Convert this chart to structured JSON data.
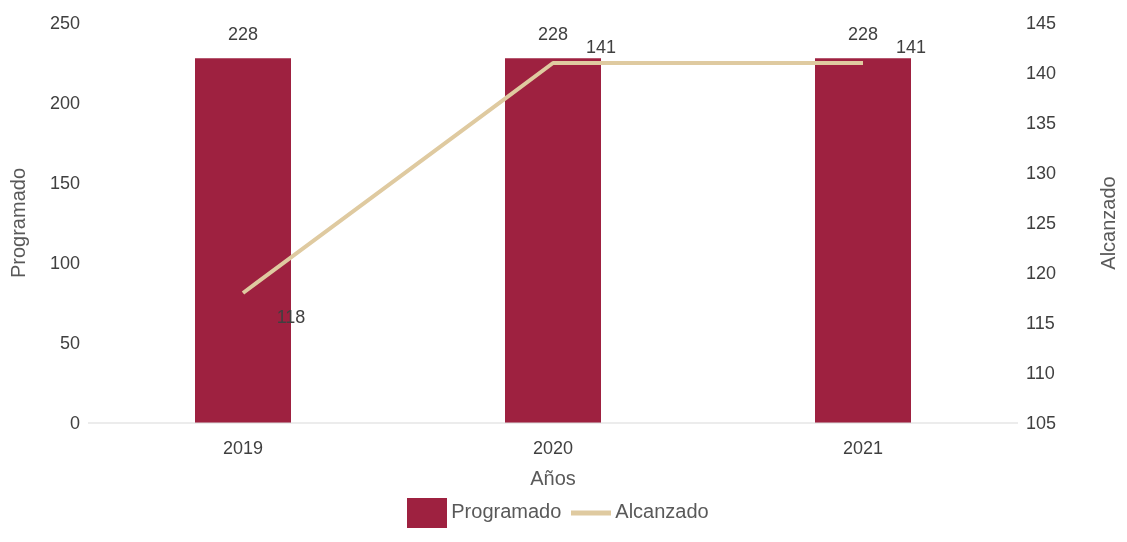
{
  "chart_data": {
    "type": "bar",
    "xlabel": "Años",
    "ylabel": "Programado",
    "y2label": "Alcanzado",
    "categories": [
      "2019",
      "2020",
      "2021"
    ],
    "series": [
      {
        "name": "Programado",
        "color": "#9e2140",
        "values": [
          228,
          228,
          228
        ]
      },
      {
        "name": "Alcanzado",
        "type": "line",
        "axis": "y2",
        "color": "#dfcaa0",
        "values": [
          118,
          141,
          141
        ]
      }
    ],
    "ylim": [
      0,
      250
    ],
    "yticks": [
      0,
      50,
      100,
      150,
      200,
      250
    ],
    "y2lim": [
      105,
      145
    ],
    "y2ticks": [
      105,
      110,
      115,
      120,
      125,
      130,
      135,
      140,
      145
    ],
    "data_labels": true,
    "legend": "bottom",
    "marker": "none"
  }
}
